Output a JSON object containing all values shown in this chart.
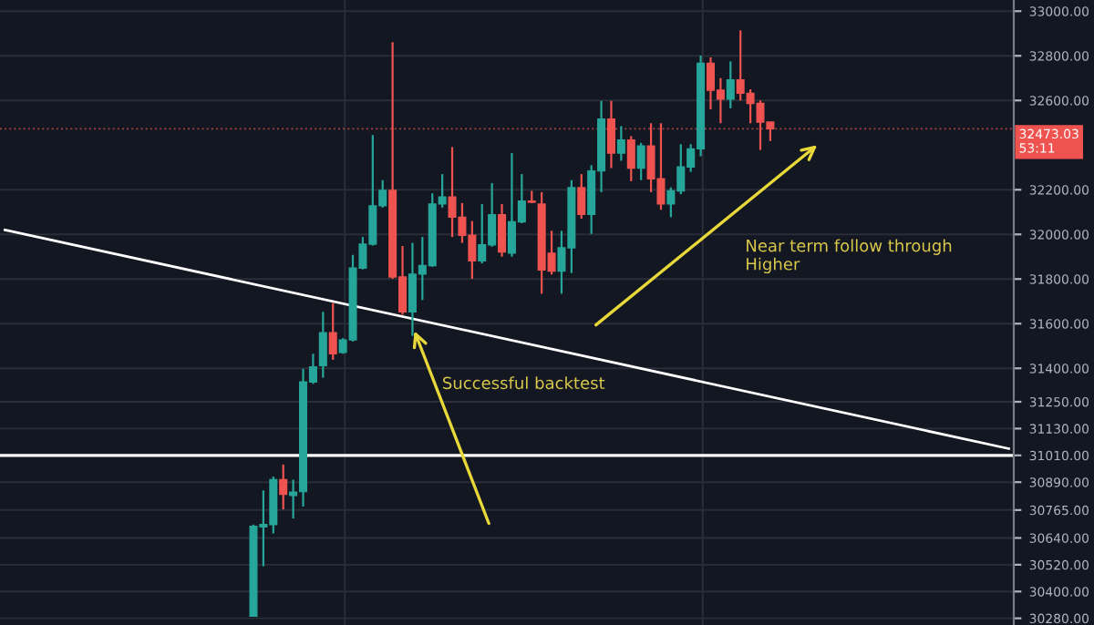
{
  "chart_data": {
    "type": "candlestick",
    "categories": [
      null,
      null,
      null,
      null,
      null,
      null,
      null,
      null,
      null,
      null,
      null,
      null,
      null,
      null,
      null,
      null,
      null,
      null,
      null,
      null,
      null,
      null,
      null,
      null,
      null,
      null,
      null,
      null,
      null,
      null,
      null,
      null,
      null,
      null,
      null,
      null,
      null,
      null,
      null,
      null,
      null,
      null,
      null,
      null,
      null,
      null,
      null,
      null,
      null,
      null,
      null,
      null,
      null,
      null,
      null,
      null,
      null,
      null,
      null,
      null,
      null,
      null,
      null,
      null,
      null,
      null,
      null,
      null,
      null,
      null,
      null,
      null,
      null,
      null,
      null,
      null,
      null,
      null,
      null,
      null,
      null,
      null,
      null,
      null,
      null,
      null,
      null,
      null,
      null,
      null,
      null,
      null,
      null,
      null,
      null,
      null,
      null,
      null,
      null,
      null,
      null,
      null
    ],
    "ohlc": [
      null,
      null,
      null,
      null,
      null,
      null,
      null,
      null,
      null,
      null,
      null,
      null,
      null,
      null,
      null,
      null,
      null,
      null,
      null,
      null,
      null,
      null,
      null,
      null,
      null,
      [
        30290,
        30700,
        30290,
        30692
      ],
      [
        30690,
        30853,
        30513,
        30700
      ],
      [
        30700,
        30915,
        30660,
        30901
      ],
      [
        30901,
        30969,
        30768,
        30835
      ],
      [
        30830,
        30901,
        30727,
        30845
      ],
      [
        30848,
        31398,
        30781,
        31339
      ],
      [
        31339,
        31465,
        31330,
        31406
      ],
      [
        31412,
        31653,
        31358,
        31559
      ],
      [
        31559,
        31693,
        31438,
        31465
      ],
      [
        31471,
        31535,
        31465,
        31527
      ],
      [
        31527,
        31908,
        31520,
        31849
      ],
      [
        31849,
        31988,
        31843,
        31956
      ],
      [
        31956,
        32445,
        31950,
        32128
      ],
      [
        32128,
        32243,
        32120,
        32197
      ],
      [
        32197,
        32861,
        31801,
        31809
      ],
      [
        31809,
        31948,
        31640,
        31653
      ],
      [
        31653,
        31962,
        31545,
        31822
      ],
      [
        31822,
        31988,
        31706,
        31860
      ],
      [
        31860,
        32184,
        31855,
        32136
      ],
      [
        32136,
        32270,
        32120,
        32168
      ],
      [
        32168,
        32391,
        31988,
        32077
      ],
      [
        32077,
        32140,
        31962,
        31996
      ],
      [
        31996,
        32060,
        31801,
        31881
      ],
      [
        31881,
        32136,
        31870,
        31953
      ],
      [
        31953,
        32230,
        31945,
        32088
      ],
      [
        32088,
        32136,
        31900,
        31921
      ],
      [
        31916,
        32364,
        31900,
        32056
      ],
      [
        32056,
        32270,
        32050,
        32149
      ],
      [
        32149,
        32195,
        32140,
        32144
      ],
      [
        32136,
        32189,
        31734,
        31841
      ],
      [
        31916,
        32016,
        31820,
        31835
      ],
      [
        31835,
        32016,
        31734,
        31940
      ],
      [
        31940,
        32243,
        31827,
        32209
      ],
      [
        32209,
        32270,
        32070,
        32090
      ],
      [
        32090,
        32310,
        32002,
        32284
      ],
      [
        32284,
        32598,
        32189,
        32517
      ],
      [
        32517,
        32598,
        32297,
        32364
      ],
      [
        32364,
        32485,
        32330,
        32423
      ],
      [
        32423,
        32440,
        32238,
        32297
      ],
      [
        32297,
        32410,
        32243,
        32396
      ],
      [
        32396,
        32498,
        32189,
        32249
      ],
      [
        32249,
        32498,
        32110,
        32136
      ],
      [
        32136,
        32210,
        32077,
        32195
      ],
      [
        32195,
        32404,
        32180,
        32302
      ],
      [
        32302,
        32404,
        32280,
        32383
      ],
      [
        32383,
        32801,
        32350,
        32767
      ],
      [
        32767,
        32793,
        32560,
        32646
      ],
      [
        32646,
        32700,
        32498,
        32606
      ],
      [
        32606,
        32775,
        32565,
        32692
      ],
      [
        32692,
        32914,
        32600,
        32632
      ],
      [
        32632,
        32650,
        32498,
        32587
      ],
      [
        32587,
        32600,
        32378,
        32503
      ],
      [
        32503,
        32503,
        32418,
        32473
      ],
      null,
      null,
      null,
      null,
      null,
      null,
      null,
      null,
      null,
      null,
      null,
      null,
      null,
      null,
      null,
      null,
      null,
      null,
      null,
      null,
      null,
      null,
      null,
      null
    ],
    "colors": [
      null,
      null,
      null,
      null,
      null,
      null,
      null,
      null,
      null,
      null,
      null,
      null,
      null,
      null,
      null,
      null,
      null,
      null,
      null,
      null,
      null,
      null,
      null,
      null,
      null,
      "#26a69a",
      "#26a69a",
      "#26a69a",
      "#ef5350",
      "#26a69a",
      "#26a69a",
      "#26a69a",
      "#26a69a",
      "#ef5350",
      "#26a69a",
      "#26a69a",
      "#26a69a",
      "#26a69a",
      "#26a69a",
      "#ef5350",
      "#ef5350",
      "#26a69a",
      "#26a69a",
      "#26a69a",
      "#26a69a",
      "#ef5350",
      "#ef5350",
      "#ef5350",
      "#26a69a",
      "#26a69a",
      "#ef5350",
      "#26a69a",
      "#26a69a",
      "#ef5350",
      "#ef5350",
      "#ef5350",
      "#26a69a",
      "#26a69a",
      "#ef5350",
      "#26a69a",
      "#26a69a",
      "#ef5350",
      "#26a69a",
      "#ef5350",
      "#26a69a",
      "#ef5350",
      "#ef5350",
      "#26a69a",
      "#26a69a",
      "#26a69a",
      "#26a69a",
      "#ef5350",
      "#ef5350",
      "#26a69a",
      "#ef5350",
      "#ef5350",
      "#ef5350",
      "#ef5350",
      null,
      null,
      null,
      null,
      null,
      null,
      null,
      null,
      null,
      null,
      null,
      null,
      null,
      null,
      null,
      null,
      null,
      null,
      null,
      null,
      null,
      null,
      null,
      null
    ],
    "series": [
      {
        "type": "line",
        "values": [
          32020,
          null,
          null,
          null,
          null,
          null,
          null,
          null,
          null,
          null,
          null,
          null,
          null,
          null,
          null,
          null,
          null,
          null,
          null,
          null,
          null,
          null,
          null,
          null,
          null,
          null,
          null,
          null,
          null,
          null,
          null,
          null,
          null,
          null,
          null,
          null,
          null,
          null,
          null,
          null,
          null,
          null,
          null,
          null,
          null,
          null,
          null,
          null,
          null,
          null,
          null,
          null,
          null,
          null,
          null,
          null,
          null,
          null,
          null,
          null,
          null,
          null,
          null,
          null,
          null,
          null,
          null,
          null,
          null,
          null,
          null,
          null,
          null,
          null,
          null,
          null,
          null,
          null,
          null,
          null,
          null,
          null,
          null,
          null,
          null,
          null,
          null,
          null,
          null,
          null,
          null,
          null,
          null,
          null,
          null,
          null,
          null,
          null,
          null,
          null,
          null,
          31040
        ],
        "color": "#ffffff"
      }
    ],
    "ylim": [
      30250,
      33050
    ],
    "yticks": [
      {
        "value": 33000,
        "label": "33000.00"
      },
      {
        "value": 32800,
        "label": "32800.00"
      },
      {
        "value": 32600,
        "label": "32600.00"
      },
      {
        "value": 32200,
        "label": "32200.00"
      },
      {
        "value": 32000,
        "label": "32000.00"
      },
      {
        "value": 31800,
        "label": "31800.00"
      },
      {
        "value": 31600,
        "label": "31600.00"
      },
      {
        "value": 31400,
        "label": "31400.00"
      },
      {
        "value": 31250,
        "label": "31250.00"
      },
      {
        "value": 31130,
        "label": "31130.00"
      },
      {
        "value": 31010,
        "label": "31010.00"
      },
      {
        "value": 30890,
        "label": "30890.00"
      },
      {
        "value": 30765,
        "label": "30765.00"
      },
      {
        "value": 30640,
        "label": "30640.00"
      },
      {
        "value": 30520,
        "label": "30520.00"
      },
      {
        "value": 30400,
        "label": "30400.00"
      },
      {
        "value": 30280,
        "label": "30280.00"
      }
    ],
    "grid": true,
    "ref_lines": [
      {
        "axis": "y",
        "value": 31010,
        "color": "#ffffff",
        "line_style": "solid"
      },
      {
        "axis": "y",
        "value": 32473.03,
        "label": "32473.03\n53:11",
        "color": "#ef5350",
        "line_style": "dotted"
      }
    ],
    "annotations": [
      "Successful backtest",
      "Near term follow through\nHigher"
    ]
  }
}
